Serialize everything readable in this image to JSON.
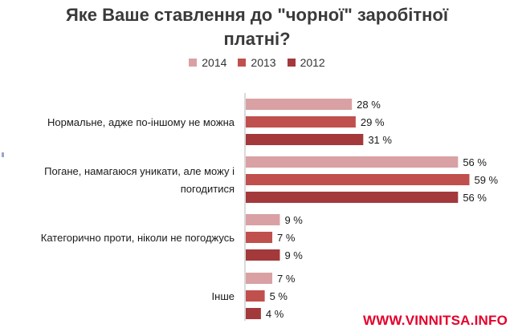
{
  "title_line1": "Яке Ваше ставлення до \"чорної\" заробітної",
  "title_line2": "платні?",
  "watermark": "WWW.VINNITSA.INFO",
  "chart_data": {
    "type": "bar",
    "orientation": "horizontal",
    "title": "Яке Ваше ставлення до \"чорної\" заробітної платні?",
    "categories": [
      [
        "Нормальне, адже по-іншому не можна"
      ],
      [
        "Погане, намагаюся уникати, але можу і",
        "погодитися"
      ],
      [
        "Категорично проти, ніколи не погоджусь"
      ],
      [
        "Інше"
      ]
    ],
    "series": [
      {
        "name": "2014",
        "color": "#d9a1a3",
        "values": [
          28,
          56,
          9,
          7
        ]
      },
      {
        "name": "2013",
        "color": "#c0504d",
        "values": [
          29,
          59,
          7,
          5
        ]
      },
      {
        "name": "2012",
        "color": "#a3393b",
        "values": [
          31,
          56,
          9,
          4
        ]
      }
    ],
    "value_suffix": " %",
    "xlim": [
      0,
      62
    ],
    "legend": "top",
    "grid": false
  }
}
